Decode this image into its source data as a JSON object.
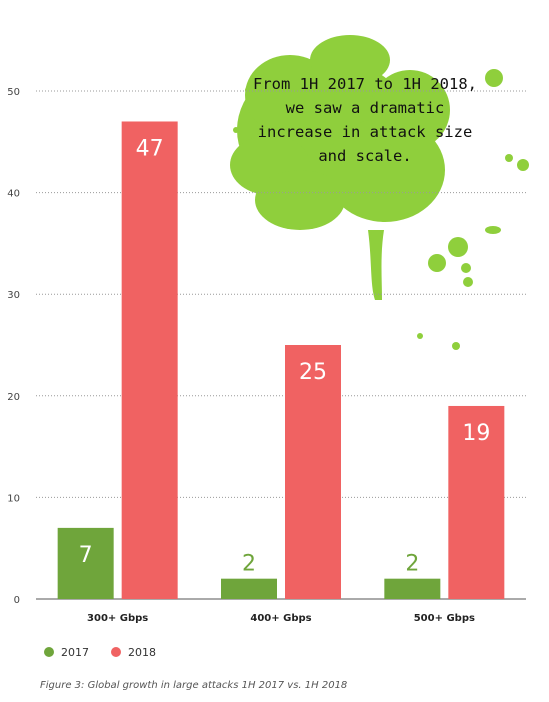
{
  "chart_data": {
    "type": "bar",
    "categories": [
      "300+ Gbps",
      "400+ Gbps",
      "500+ Gbps"
    ],
    "series": [
      {
        "name": "2017",
        "values": [
          7,
          2,
          2
        ],
        "color": "#6fa53b"
      },
      {
        "name": "2018",
        "values": [
          47,
          25,
          19
        ],
        "color": "#f06262"
      }
    ],
    "ylim": [
      0,
      50
    ],
    "yticks": [
      0,
      10,
      20,
      30,
      40,
      50
    ],
    "grid": true,
    "legend": "bottom-left",
    "annotation": "From 1H 2017 to 1H 2018, we saw a dramatic increase in attack size and scale.",
    "splash_color": "#8fcf3c"
  },
  "caption": "Figure 3:  Global growth in large attacks 1H 2017 vs. 1H 2018"
}
